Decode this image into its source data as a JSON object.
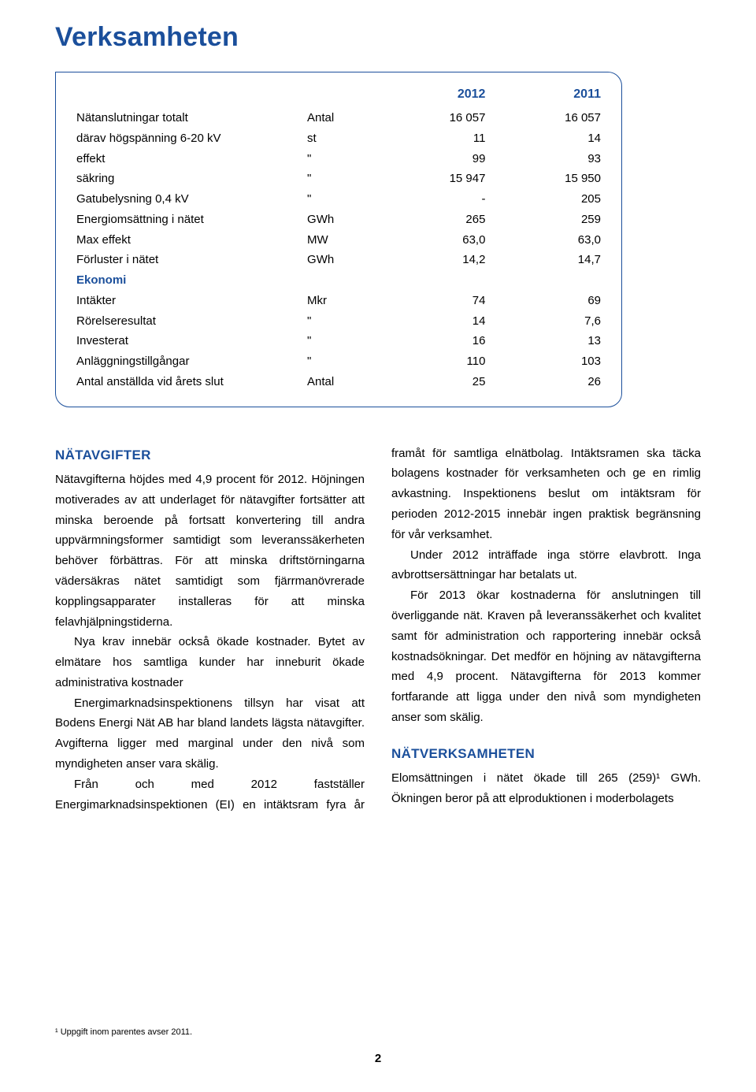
{
  "title": "Verksamheten",
  "colors": {
    "accent": "#1b4f9b",
    "text": "#000000",
    "bg": "#ffffff",
    "border": "#1b4f9b"
  },
  "table": {
    "year_a": "2012",
    "year_b": "2011",
    "rows": [
      {
        "label": "Nätanslutningar totalt",
        "unit": "Antal",
        "a": "16 057",
        "b": "16 057"
      },
      {
        "label": "därav högspänning 6-20 kV",
        "unit": "st",
        "a": "11",
        "b": "14",
        "indent": true
      },
      {
        "label": "effekt",
        "unit": "\"",
        "a": "99",
        "b": "93",
        "indent": true
      },
      {
        "label": "säkring",
        "unit": "\"",
        "a": "15 947",
        "b": "15 950",
        "indent": true
      },
      {
        "label": "Gatubelysning 0,4 kV",
        "unit": "\"",
        "a": "-",
        "b": "205"
      },
      {
        "label": "Energiomsättning i nätet",
        "unit": "GWh",
        "a": "265",
        "b": "259"
      },
      {
        "label": "Max effekt",
        "unit": "MW",
        "a": "63,0",
        "b": "63,0"
      },
      {
        "label": "Förluster i nätet",
        "unit": "GWh",
        "a": "14,2",
        "b": "14,7"
      }
    ],
    "econ_head": "Ekonomi",
    "econ_rows": [
      {
        "label": "Intäkter",
        "unit": "Mkr",
        "a": "74",
        "b": "69"
      },
      {
        "label": "Rörelseresultat",
        "unit": "\"",
        "a": "14",
        "b": "7,6"
      },
      {
        "label": "Investerat",
        "unit": "\"",
        "a": "16",
        "b": "13"
      },
      {
        "label": "Anläggningstillgångar",
        "unit": "\"",
        "a": "110",
        "b": "103"
      },
      {
        "label": "Antal anställda vid årets slut",
        "unit": "Antal",
        "a": "25",
        "b": "26"
      }
    ]
  },
  "body": {
    "h_natavgifter": "NÄTAVGIFTER",
    "p1": "Nätavgifterna höjdes med 4,9 procent för 2012. Höjningen motiverades av att underlaget för nätavgifter fortsätter att minska beroende på fortsatt konvertering till andra uppvärmningsformer samtidigt som leveranssäkerheten behöver förbättras. För att minska driftstörningarna vädersäkras nätet samtidigt som fjärrmanövrerade kopplingsapparater installeras för att minska felavhjälpningstiderna.",
    "p2": "Nya krav innebär också ökade kostnader. Bytet av elmätare hos samtliga kunder har inneburit ökade administrativa kostnader",
    "p3": "Energimarknadsinspektionens tillsyn har visat att Bodens Energi Nät AB har bland landets lägsta nätavgifter. Avgifterna ligger med marginal under den nivå som myndigheten anser vara skälig.",
    "p4": "Från och med 2012 fastställer Energimarknadsinspektionen (EI) en intäktsram fyra år framåt för samtliga elnätbolag. Intäktsramen ska täcka bolagens kostnader för verksamheten och ge en rimlig avkastning. Inspektionens beslut om intäktsram för perioden 2012-2015 innebär ingen praktisk begränsning för vår verksamhet.",
    "p5": "Under 2012 inträffade inga större elavbrott. Inga avbrottsersättningar har betalats ut.",
    "p6": "För 2013 ökar kostnaderna för anslutningen till överliggande nät. Kraven på leveranssäkerhet och kvalitet samt för administration och rapportering innebär också kostnadsökningar. Det medför en höjning av nätavgifterna med 4,9 procent. Nätavgifterna för 2013 kommer fortfarande att ligga under den nivå som myndigheten anser som skälig.",
    "h_natverk": "NÄTVERKSAMHETEN",
    "p7": "Elomsättningen i nätet ökade till 265 (259)¹ GWh. Ökningen beror på att elproduktionen i moderbolagets"
  },
  "footnote": "¹ Uppgift inom parentes avser 2011.",
  "page_number": "2"
}
